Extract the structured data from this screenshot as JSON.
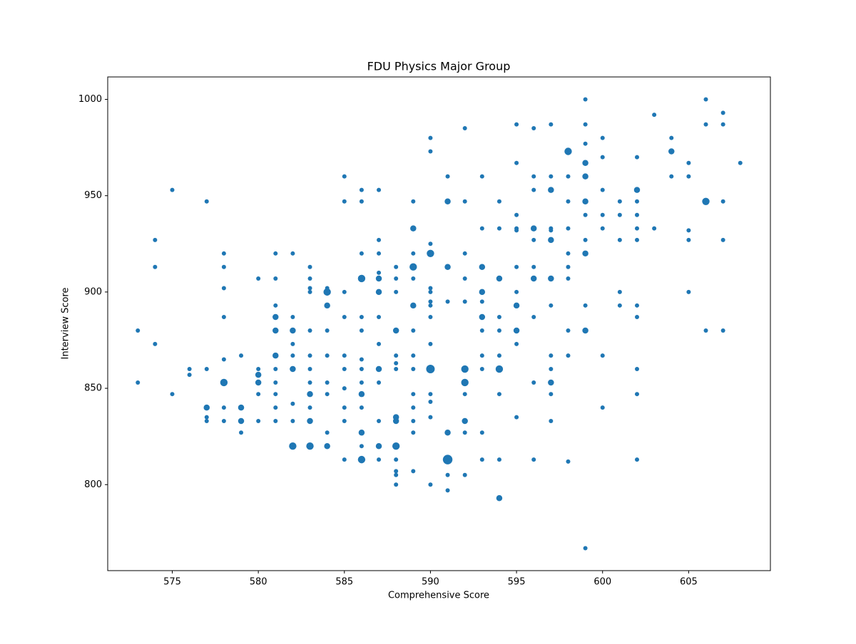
{
  "chart_data": {
    "type": "scatter",
    "title": "FDU Physics Major Group",
    "x_label": "Comprehensive Score",
    "y_label": "Interview Score",
    "color": "#1f77b4",
    "xlim": [
      571.25,
      609.75
    ],
    "ylim": [
      755.35,
      1011.65
    ],
    "xticks": [
      575,
      580,
      585,
      590,
      595,
      600,
      605
    ],
    "yticks": [
      800,
      850,
      900,
      950,
      1000
    ],
    "grid": false,
    "x": [
      573,
      573,
      574,
      574,
      574,
      575,
      575,
      576,
      576,
      577,
      577,
      577,
      577,
      577,
      578,
      578,
      578,
      578,
      578,
      578,
      578,
      578,
      579,
      579,
      579,
      579,
      580,
      580,
      580,
      580,
      580,
      580,
      581,
      581,
      581,
      581,
      581,
      581,
      581,
      581,
      581,
      581,
      581,
      582,
      582,
      582,
      582,
      582,
      582,
      582,
      582,
      582,
      583,
      583,
      583,
      583,
      583,
      583,
      583,
      583,
      583,
      583,
      583,
      583,
      584,
      584,
      584,
      584,
      584,
      584,
      584,
      584,
      584,
      585,
      585,
      585,
      585,
      585,
      585,
      585,
      585,
      585,
      585,
      586,
      586,
      586,
      586,
      586,
      586,
      586,
      586,
      586,
      586,
      586,
      586,
      586,
      586,
      587,
      587,
      587,
      587,
      587,
      587,
      587,
      587,
      587,
      587,
      587,
      587,
      587,
      588,
      588,
      588,
      588,
      588,
      588,
      588,
      588,
      588,
      588,
      588,
      588,
      588,
      588,
      589,
      589,
      589,
      589,
      589,
      589,
      589,
      589,
      589,
      589,
      589,
      589,
      589,
      589,
      590,
      590,
      590,
      590,
      590,
      590,
      590,
      590,
      590,
      590,
      590,
      590,
      590,
      590,
      590,
      591,
      591,
      591,
      591,
      591,
      591,
      591,
      591,
      592,
      592,
      592,
      592,
      592,
      592,
      592,
      592,
      592,
      592,
      592,
      593,
      593,
      593,
      593,
      593,
      593,
      593,
      593,
      593,
      593,
      593,
      594,
      594,
      594,
      594,
      594,
      594,
      594,
      594,
      594,
      594,
      595,
      595,
      595,
      595,
      595,
      595,
      595,
      595,
      595,
      595,
      595,
      596,
      596,
      596,
      596,
      596,
      596,
      596,
      596,
      596,
      596,
      597,
      597,
      597,
      597,
      597,
      597,
      597,
      597,
      597,
      597,
      597,
      597,
      597,
      598,
      598,
      598,
      598,
      598,
      598,
      598,
      598,
      598,
      598,
      599,
      599,
      599,
      599,
      599,
      599,
      599,
      599,
      599,
      599,
      599,
      599,
      600,
      600,
      600,
      600,
      600,
      600,
      600,
      601,
      601,
      601,
      601,
      601,
      602,
      602,
      602,
      602,
      602,
      602,
      602,
      602,
      602,
      602,
      602,
      603,
      603,
      604,
      604,
      604,
      605,
      605,
      605,
      605,
      605,
      606,
      606,
      606,
      606,
      607,
      607,
      607,
      607,
      607,
      608
    ],
    "values": [
      880,
      853,
      927,
      913,
      873,
      953,
      847,
      860,
      857,
      947,
      860,
      840,
      835,
      833,
      920,
      913,
      902,
      887,
      865,
      853,
      840,
      833,
      867,
      840,
      833,
      827,
      907,
      860,
      857,
      853,
      847,
      833,
      920,
      907,
      893,
      887,
      880,
      867,
      860,
      853,
      847,
      840,
      833,
      920,
      887,
      880,
      873,
      867,
      860,
      842,
      833,
      820,
      913,
      907,
      902,
      900,
      880,
      867,
      860,
      853,
      847,
      840,
      833,
      820,
      902,
      900,
      893,
      880,
      867,
      853,
      847,
      827,
      820,
      960,
      947,
      900,
      887,
      867,
      860,
      850,
      840,
      833,
      813,
      953,
      947,
      920,
      907,
      887,
      880,
      865,
      860,
      853,
      847,
      840,
      827,
      820,
      813,
      953,
      927,
      920,
      910,
      907,
      900,
      887,
      873,
      860,
      853,
      833,
      820,
      813,
      913,
      907,
      900,
      880,
      867,
      863,
      860,
      835,
      833,
      820,
      813,
      807,
      805,
      800,
      947,
      933,
      920,
      913,
      907,
      893,
      880,
      867,
      860,
      847,
      840,
      833,
      827,
      807,
      980,
      973,
      925,
      920,
      902,
      900,
      895,
      893,
      887,
      873,
      860,
      847,
      843,
      835,
      800,
      960,
      947,
      913,
      895,
      827,
      813,
      805,
      797,
      985,
      947,
      920,
      907,
      895,
      860,
      853,
      847,
      833,
      827,
      805,
      960,
      933,
      913,
      900,
      895,
      887,
      880,
      867,
      860,
      827,
      813,
      947,
      933,
      907,
      887,
      880,
      867,
      860,
      847,
      813,
      793,
      987,
      967,
      940,
      933,
      932,
      913,
      900,
      893,
      880,
      873,
      835,
      985,
      960,
      953,
      933,
      927,
      913,
      907,
      887,
      853,
      813,
      987,
      960,
      953,
      933,
      932,
      927,
      907,
      893,
      867,
      860,
      853,
      847,
      833,
      973,
      960,
      947,
      933,
      920,
      913,
      907,
      880,
      867,
      812,
      1000,
      987,
      977,
      967,
      960,
      947,
      940,
      927,
      920,
      893,
      880,
      767,
      980,
      970,
      953,
      940,
      933,
      867,
      840,
      947,
      940,
      927,
      900,
      893,
      970,
      953,
      947,
      940,
      933,
      927,
      893,
      887,
      860,
      847,
      813,
      992,
      933,
      980,
      973,
      960,
      967,
      960,
      932,
      927,
      900,
      1000,
      987,
      947,
      880,
      993,
      987,
      947,
      927,
      880,
      967
    ],
    "sizes": [
      1,
      1,
      1,
      1,
      1,
      1,
      1,
      1,
      1,
      1,
      1,
      2,
      1,
      1,
      1,
      1,
      1,
      1,
      1,
      3,
      1,
      1,
      1,
      2,
      2,
      1,
      1,
      1,
      2,
      2,
      1,
      1,
      1,
      1,
      1,
      2,
      2,
      2,
      1,
      1,
      1,
      1,
      1,
      1,
      1,
      2,
      1,
      1,
      2,
      1,
      1,
      3,
      1,
      1,
      1,
      1,
      1,
      1,
      1,
      1,
      2,
      1,
      2,
      3,
      1,
      3,
      2,
      1,
      1,
      1,
      1,
      1,
      2,
      1,
      1,
      1,
      1,
      1,
      1,
      1,
      1,
      1,
      1,
      1,
      1,
      1,
      3,
      1,
      1,
      1,
      1,
      1,
      2,
      1,
      2,
      1,
      3,
      1,
      1,
      1,
      1,
      2,
      2,
      1,
      1,
      2,
      1,
      1,
      2,
      1,
      1,
      1,
      1,
      2,
      1,
      1,
      1,
      2,
      2,
      3,
      1,
      1,
      1,
      1,
      1,
      2,
      1,
      3,
      1,
      2,
      1,
      1,
      1,
      1,
      1,
      1,
      1,
      1,
      1,
      1,
      1,
      3,
      1,
      1,
      1,
      1,
      1,
      1,
      4,
      1,
      1,
      1,
      1,
      1,
      2,
      2,
      1,
      2,
      5,
      1,
      1,
      1,
      1,
      1,
      1,
      1,
      3,
      3,
      1,
      2,
      1,
      1,
      1,
      1,
      2,
      2,
      1,
      2,
      1,
      1,
      1,
      1,
      1,
      1,
      1,
      2,
      1,
      1,
      1,
      3,
      1,
      1,
      2,
      1,
      1,
      1,
      1,
      1,
      1,
      1,
      2,
      2,
      1,
      1,
      1,
      1,
      1,
      2,
      1,
      1,
      2,
      1,
      1,
      1,
      1,
      1,
      2,
      1,
      1,
      2,
      2,
      1,
      1,
      1,
      2,
      1,
      1,
      3,
      1,
      1,
      1,
      1,
      1,
      1,
      1,
      1,
      1,
      1,
      1,
      1,
      2,
      2,
      2,
      1,
      1,
      2,
      1,
      2,
      1,
      1,
      1,
      1,
      1,
      1,
      1,
      1,
      1,
      1,
      1,
      1,
      1,
      1,
      2,
      1,
      1,
      1,
      1,
      1,
      1,
      1,
      1,
      1,
      1,
      1,
      1,
      2,
      1,
      1,
      1,
      1,
      1,
      1,
      1,
      1,
      3,
      1,
      1,
      1,
      1,
      1,
      1,
      1
    ]
  }
}
